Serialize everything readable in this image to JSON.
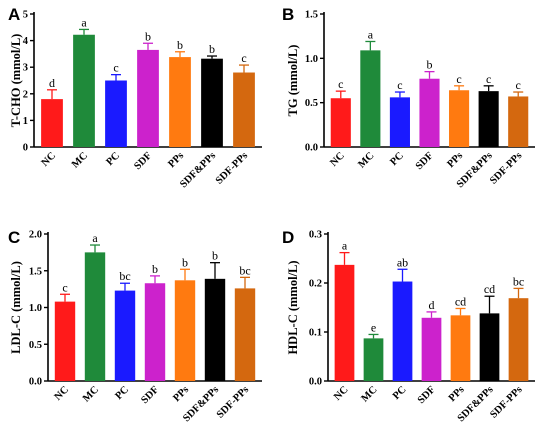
{
  "colors": {
    "NC": "#ff1a1a",
    "MC": "#1f8a3a",
    "PC": "#1a1aff",
    "SDF": "#cc22cc",
    "PPs": "#ff7a10",
    "SDF&PPs": "#000000",
    "SDF-PPs": "#d4680f"
  },
  "chart_data": [
    {
      "type": "bar",
      "panel": "A",
      "ylabel": "T-CHO (mmol/L)",
      "categories": [
        "NC",
        "MC",
        "PC",
        "SDF",
        "PPs",
        "SDF&PPs",
        "SDF-PPs"
      ],
      "values": [
        1.8,
        4.22,
        2.5,
        3.65,
        3.38,
        3.32,
        2.8
      ],
      "errors": [
        0.35,
        0.2,
        0.22,
        0.25,
        0.2,
        0.1,
        0.28
      ],
      "significance": [
        "d",
        "a",
        "c",
        "b",
        "b",
        "b",
        "c"
      ],
      "ylim": [
        0,
        5
      ],
      "yticks": [
        "0",
        "1",
        "2",
        "3",
        "4",
        "5"
      ]
    },
    {
      "type": "bar",
      "panel": "B",
      "ylabel": "TG (mmol/L)",
      "categories": [
        "NC",
        "MC",
        "PC",
        "SDF",
        "PPs",
        "SDF&PPs",
        "SDF-PPs"
      ],
      "values": [
        0.55,
        1.09,
        0.56,
        0.77,
        0.64,
        0.63,
        0.57
      ],
      "errors": [
        0.08,
        0.1,
        0.06,
        0.08,
        0.05,
        0.06,
        0.05
      ],
      "significance": [
        "c",
        "a",
        "c",
        "b",
        "c",
        "c",
        "c"
      ],
      "ylim": [
        0,
        1.5
      ],
      "yticks": [
        "0.0",
        "0.5",
        "1.0",
        "1.5"
      ]
    },
    {
      "type": "bar",
      "panel": "C",
      "ylabel": "LDL-C (mmol/L)",
      "categories": [
        "NC",
        "MC",
        "PC",
        "SDF",
        "PPs",
        "SDF&PPs",
        "SDF-PPs"
      ],
      "values": [
        1.08,
        1.75,
        1.23,
        1.33,
        1.37,
        1.39,
        1.26
      ],
      "errors": [
        0.1,
        0.1,
        0.1,
        0.1,
        0.15,
        0.22,
        0.15
      ],
      "significance": [
        "c",
        "a",
        "bc",
        "b",
        "b",
        "b",
        "bc"
      ],
      "ylim": [
        0,
        2.0
      ],
      "yticks": [
        "0.0",
        "0.5",
        "1.0",
        "1.5",
        "2.0"
      ]
    },
    {
      "type": "bar",
      "panel": "D",
      "ylabel": "HDL-C (mmol/L)",
      "categories": [
        "NC",
        "MC",
        "PC",
        "SDF",
        "PPs",
        "SDF&PPs",
        "SDF-PPs"
      ],
      "values": [
        0.237,
        0.087,
        0.203,
        0.129,
        0.134,
        0.138,
        0.169
      ],
      "errors": [
        0.025,
        0.008,
        0.025,
        0.012,
        0.014,
        0.035,
        0.02
      ],
      "significance": [
        "a",
        "e",
        "ab",
        "d",
        "cd",
        "cd",
        "bc"
      ],
      "ylim": [
        0,
        0.3
      ],
      "yticks": [
        "0.0",
        "0.1",
        "0.2",
        "0.3"
      ]
    }
  ]
}
